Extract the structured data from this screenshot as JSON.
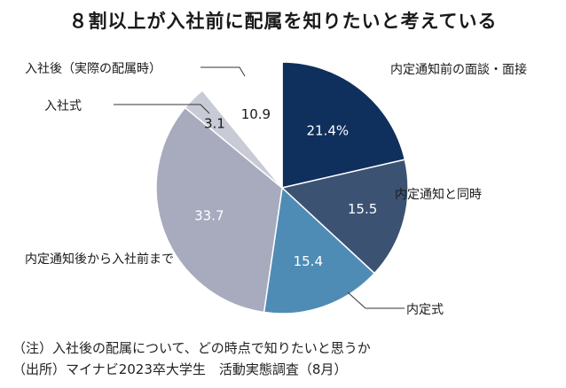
{
  "chart_data": {
    "type": "pie",
    "title": "８割以上が入社前に配属を知りたいと考えている",
    "start_angle_deg": 0,
    "direction": "clockwise",
    "slices": [
      {
        "label": "内定通知前の面談・面接",
        "value": 21.4,
        "value_text": "21.4%",
        "color": "#0f2f5c",
        "text_color": "#ffffff"
      },
      {
        "label": "内定通知と同時",
        "value": 15.5,
        "value_text": "15.5",
        "color": "#3b5273",
        "text_color": "#ffffff"
      },
      {
        "label": "内定式",
        "value": 15.4,
        "value_text": "15.4",
        "color": "#4f8cb5",
        "text_color": "#ffffff"
      },
      {
        "label": "内定通知後から入社前まで",
        "value": 33.7,
        "value_text": "33.7",
        "color": "#a7abbd",
        "text_color": "#ffffff"
      },
      {
        "label": "入社式",
        "value": 3.1,
        "value_text": "3.1",
        "color": "#c8cad6",
        "text_color": "#1a1a1a"
      },
      {
        "label": "入社後（実際の配属時）",
        "value": 10.9,
        "value_text": "10.9",
        "color": "#ffffff",
        "text_color": "#1a1a1a"
      }
    ]
  },
  "notes": {
    "note1": "（注）入社後の配属について、どの時点で知りたいと思うか",
    "note2": "（出所）マイナビ2023卒大学生　活動実態調査（8月）"
  }
}
